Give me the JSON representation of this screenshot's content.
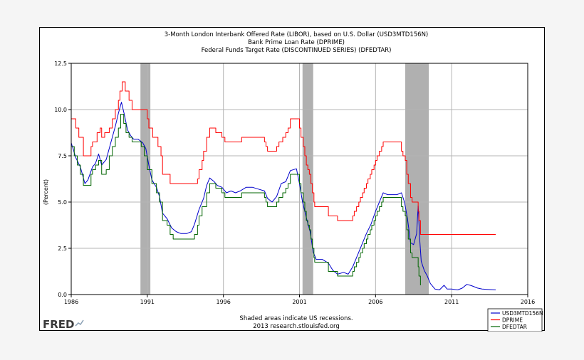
{
  "chart_data": {
    "type": "line",
    "title_lines": [
      "3-Month London Interbank Offered Rate (LIBOR), based on U.S. Dollar (USD3MTD156N)",
      "Bank Prime Loan Rate (DPRIME)",
      "Federal Funds Target Rate  (DISCONTINUED SERIES) (DFEDTAR)"
    ],
    "xlabel": "",
    "ylabel": "(Percent)",
    "xlim": [
      1986,
      2016
    ],
    "ylim": [
      0,
      12.5
    ],
    "x_ticks": [
      "1986",
      "1991",
      "1996",
      "2001",
      "2006",
      "2011",
      "2016"
    ],
    "y_ticks": [
      "0.0",
      "2.5",
      "5.0",
      "7.5",
      "10.0",
      "12.5"
    ],
    "grid": true,
    "recessions": [
      [
        1990.55,
        1991.2
      ],
      [
        2001.2,
        2001.9
      ],
      [
        2007.95,
        2009.5
      ]
    ],
    "series": [
      {
        "name": "USD3MTD156N",
        "color": "#0000cc",
        "points": [
          [
            1986.0,
            8.2
          ],
          [
            1986.3,
            7.4
          ],
          [
            1986.6,
            6.9
          ],
          [
            1986.9,
            6.0
          ],
          [
            1987.1,
            6.2
          ],
          [
            1987.4,
            6.9
          ],
          [
            1987.6,
            7.1
          ],
          [
            1987.8,
            7.6
          ],
          [
            1988.0,
            7.0
          ],
          [
            1988.3,
            7.3
          ],
          [
            1988.6,
            8.2
          ],
          [
            1988.9,
            9.1
          ],
          [
            1989.1,
            9.8
          ],
          [
            1989.3,
            10.4
          ],
          [
            1989.5,
            9.7
          ],
          [
            1989.7,
            8.9
          ],
          [
            1989.9,
            8.6
          ],
          [
            1990.1,
            8.4
          ],
          [
            1990.4,
            8.4
          ],
          [
            1990.7,
            8.2
          ],
          [
            1990.9,
            7.9
          ],
          [
            1991.1,
            7.0
          ],
          [
            1991.3,
            6.2
          ],
          [
            1991.6,
            5.8
          ],
          [
            1991.8,
            5.3
          ],
          [
            1992.0,
            4.4
          ],
          [
            1992.3,
            4.1
          ],
          [
            1992.6,
            3.6
          ],
          [
            1992.9,
            3.4
          ],
          [
            1993.2,
            3.3
          ],
          [
            1993.6,
            3.3
          ],
          [
            1993.9,
            3.4
          ],
          [
            1994.1,
            3.8
          ],
          [
            1994.4,
            4.6
          ],
          [
            1994.7,
            5.2
          ],
          [
            1994.9,
            5.9
          ],
          [
            1995.1,
            6.3
          ],
          [
            1995.4,
            6.1
          ],
          [
            1995.6,
            5.9
          ],
          [
            1995.9,
            5.8
          ],
          [
            1996.2,
            5.5
          ],
          [
            1996.5,
            5.6
          ],
          [
            1996.8,
            5.5
          ],
          [
            1997.1,
            5.6
          ],
          [
            1997.5,
            5.8
          ],
          [
            1997.9,
            5.8
          ],
          [
            1998.3,
            5.7
          ],
          [
            1998.7,
            5.6
          ],
          [
            1998.9,
            5.2
          ],
          [
            1999.2,
            5.0
          ],
          [
            1999.5,
            5.3
          ],
          [
            1999.8,
            6.0
          ],
          [
            2000.1,
            6.1
          ],
          [
            2000.4,
            6.7
          ],
          [
            2000.8,
            6.8
          ],
          [
            2001.0,
            6.0
          ],
          [
            2001.2,
            5.0
          ],
          [
            2001.5,
            4.0
          ],
          [
            2001.7,
            3.4
          ],
          [
            2001.9,
            2.3
          ],
          [
            2002.1,
            1.9
          ],
          [
            2002.5,
            1.9
          ],
          [
            2002.9,
            1.7
          ],
          [
            2003.2,
            1.3
          ],
          [
            2003.5,
            1.1
          ],
          [
            2003.9,
            1.2
          ],
          [
            2004.2,
            1.1
          ],
          [
            2004.5,
            1.5
          ],
          [
            2004.8,
            2.1
          ],
          [
            2005.1,
            2.7
          ],
          [
            2005.4,
            3.3
          ],
          [
            2005.7,
            3.8
          ],
          [
            2006.0,
            4.5
          ],
          [
            2006.3,
            5.1
          ],
          [
            2006.5,
            5.5
          ],
          [
            2006.8,
            5.4
          ],
          [
            2007.1,
            5.4
          ],
          [
            2007.4,
            5.4
          ],
          [
            2007.7,
            5.5
          ],
          [
            2007.9,
            5.0
          ],
          [
            2008.1,
            4.1
          ],
          [
            2008.3,
            2.8
          ],
          [
            2008.5,
            2.7
          ],
          [
            2008.7,
            3.3
          ],
          [
            2008.8,
            4.8
          ],
          [
            2008.9,
            3.0
          ],
          [
            2009.0,
            1.8
          ],
          [
            2009.2,
            1.3
          ],
          [
            2009.4,
            1.0
          ],
          [
            2009.6,
            0.6
          ],
          [
            2009.9,
            0.3
          ],
          [
            2010.2,
            0.25
          ],
          [
            2010.5,
            0.5
          ],
          [
            2010.7,
            0.3
          ],
          [
            2011.0,
            0.3
          ],
          [
            2011.4,
            0.25
          ],
          [
            2011.7,
            0.35
          ],
          [
            2012.0,
            0.55
          ],
          [
            2012.3,
            0.48
          ],
          [
            2012.7,
            0.35
          ],
          [
            2013.0,
            0.3
          ],
          [
            2013.5,
            0.27
          ],
          [
            2013.9,
            0.25
          ]
        ]
      },
      {
        "name": "DPRIME",
        "color": "#ff0000",
        "step": true,
        "points": [
          [
            1986.0,
            9.5
          ],
          [
            1986.3,
            9.0
          ],
          [
            1986.5,
            8.5
          ],
          [
            1986.8,
            7.5
          ],
          [
            1987.3,
            8.0
          ],
          [
            1987.4,
            8.25
          ],
          [
            1987.7,
            8.75
          ],
          [
            1987.9,
            9.0
          ],
          [
            1988.0,
            8.5
          ],
          [
            1988.2,
            8.75
          ],
          [
            1988.5,
            9.0
          ],
          [
            1988.7,
            9.5
          ],
          [
            1988.9,
            10.0
          ],
          [
            1989.1,
            10.5
          ],
          [
            1989.2,
            11.0
          ],
          [
            1989.35,
            11.5
          ],
          [
            1989.55,
            11.0
          ],
          [
            1989.8,
            10.5
          ],
          [
            1990.0,
            10.0
          ],
          [
            1991.0,
            9.5
          ],
          [
            1991.1,
            9.0
          ],
          [
            1991.35,
            8.5
          ],
          [
            1991.7,
            8.0
          ],
          [
            1991.9,
            7.5
          ],
          [
            1992.0,
            6.5
          ],
          [
            1992.5,
            6.0
          ],
          [
            1994.3,
            6.25
          ],
          [
            1994.4,
            6.75
          ],
          [
            1994.6,
            7.25
          ],
          [
            1994.7,
            7.75
          ],
          [
            1994.9,
            8.5
          ],
          [
            1995.1,
            9.0
          ],
          [
            1995.5,
            8.75
          ],
          [
            1995.9,
            8.5
          ],
          [
            1996.1,
            8.25
          ],
          [
            1997.2,
            8.5
          ],
          [
            1998.7,
            8.25
          ],
          [
            1998.8,
            8.0
          ],
          [
            1998.9,
            7.75
          ],
          [
            1999.5,
            8.0
          ],
          [
            1999.65,
            8.25
          ],
          [
            1999.9,
            8.5
          ],
          [
            2000.1,
            8.75
          ],
          [
            2000.25,
            9.0
          ],
          [
            2000.4,
            9.5
          ],
          [
            2001.0,
            9.0
          ],
          [
            2001.1,
            8.5
          ],
          [
            2001.25,
            8.0
          ],
          [
            2001.35,
            7.5
          ],
          [
            2001.45,
            7.0
          ],
          [
            2001.55,
            6.75
          ],
          [
            2001.65,
            6.5
          ],
          [
            2001.75,
            6.0
          ],
          [
            2001.85,
            5.5
          ],
          [
            2001.95,
            5.0
          ],
          [
            2002.0,
            4.75
          ],
          [
            2002.9,
            4.25
          ],
          [
            2003.5,
            4.0
          ],
          [
            2004.5,
            4.25
          ],
          [
            2004.6,
            4.5
          ],
          [
            2004.75,
            4.75
          ],
          [
            2004.9,
            5.0
          ],
          [
            2005.0,
            5.25
          ],
          [
            2005.15,
            5.5
          ],
          [
            2005.25,
            5.75
          ],
          [
            2005.4,
            6.0
          ],
          [
            2005.5,
            6.25
          ],
          [
            2005.65,
            6.5
          ],
          [
            2005.75,
            6.75
          ],
          [
            2005.9,
            7.0
          ],
          [
            2006.0,
            7.25
          ],
          [
            2006.1,
            7.5
          ],
          [
            2006.25,
            7.75
          ],
          [
            2006.4,
            8.0
          ],
          [
            2006.5,
            8.25
          ],
          [
            2007.7,
            7.75
          ],
          [
            2007.8,
            7.5
          ],
          [
            2007.95,
            7.25
          ],
          [
            2008.05,
            6.5
          ],
          [
            2008.15,
            6.0
          ],
          [
            2008.3,
            5.25
          ],
          [
            2008.4,
            5.0
          ],
          [
            2008.8,
            4.5
          ],
          [
            2008.85,
            4.0
          ],
          [
            2008.95,
            3.25
          ],
          [
            2013.9,
            3.25
          ]
        ]
      },
      {
        "name": "DFEDTAR",
        "color": "#006400",
        "step": true,
        "points": [
          [
            1986.0,
            8.0
          ],
          [
            1986.2,
            7.5
          ],
          [
            1986.4,
            7.0
          ],
          [
            1986.6,
            6.5
          ],
          [
            1986.8,
            5.9
          ],
          [
            1987.3,
            6.5
          ],
          [
            1987.4,
            6.75
          ],
          [
            1987.6,
            7.0
          ],
          [
            1987.8,
            7.25
          ],
          [
            1988.0,
            6.5
          ],
          [
            1988.3,
            6.75
          ],
          [
            1988.5,
            7.5
          ],
          [
            1988.7,
            8.0
          ],
          [
            1988.9,
            8.5
          ],
          [
            1989.1,
            9.0
          ],
          [
            1989.25,
            9.75
          ],
          [
            1989.45,
            9.25
          ],
          [
            1989.6,
            8.75
          ],
          [
            1989.8,
            8.5
          ],
          [
            1990.0,
            8.25
          ],
          [
            1990.6,
            8.0
          ],
          [
            1990.8,
            7.5
          ],
          [
            1991.0,
            6.75
          ],
          [
            1991.3,
            6.0
          ],
          [
            1991.6,
            5.5
          ],
          [
            1991.8,
            5.0
          ],
          [
            1992.0,
            4.0
          ],
          [
            1992.3,
            3.75
          ],
          [
            1992.5,
            3.25
          ],
          [
            1992.7,
            3.0
          ],
          [
            1994.1,
            3.25
          ],
          [
            1994.3,
            3.75
          ],
          [
            1994.4,
            4.25
          ],
          [
            1994.6,
            4.75
          ],
          [
            1994.9,
            5.5
          ],
          [
            1995.1,
            6.0
          ],
          [
            1995.5,
            5.75
          ],
          [
            1995.9,
            5.5
          ],
          [
            1996.1,
            5.25
          ],
          [
            1997.2,
            5.5
          ],
          [
            1998.7,
            5.25
          ],
          [
            1998.8,
            5.0
          ],
          [
            1998.9,
            4.75
          ],
          [
            1999.5,
            5.0
          ],
          [
            1999.65,
            5.25
          ],
          [
            1999.9,
            5.5
          ],
          [
            2000.1,
            5.75
          ],
          [
            2000.25,
            6.0
          ],
          [
            2000.4,
            6.5
          ],
          [
            2001.0,
            6.0
          ],
          [
            2001.1,
            5.5
          ],
          [
            2001.25,
            5.0
          ],
          [
            2001.35,
            4.5
          ],
          [
            2001.45,
            4.0
          ],
          [
            2001.55,
            3.75
          ],
          [
            2001.65,
            3.5
          ],
          [
            2001.75,
            3.0
          ],
          [
            2001.85,
            2.5
          ],
          [
            2001.95,
            2.0
          ],
          [
            2002.0,
            1.75
          ],
          [
            2002.9,
            1.25
          ],
          [
            2003.5,
            1.0
          ],
          [
            2004.5,
            1.25
          ],
          [
            2004.6,
            1.5
          ],
          [
            2004.75,
            1.75
          ],
          [
            2004.9,
            2.0
          ],
          [
            2005.0,
            2.25
          ],
          [
            2005.15,
            2.5
          ],
          [
            2005.25,
            2.75
          ],
          [
            2005.4,
            3.0
          ],
          [
            2005.5,
            3.25
          ],
          [
            2005.65,
            3.5
          ],
          [
            2005.75,
            3.75
          ],
          [
            2005.9,
            4.0
          ],
          [
            2006.0,
            4.25
          ],
          [
            2006.1,
            4.5
          ],
          [
            2006.25,
            4.75
          ],
          [
            2006.4,
            5.0
          ],
          [
            2006.5,
            5.25
          ],
          [
            2007.7,
            4.75
          ],
          [
            2007.8,
            4.5
          ],
          [
            2007.95,
            4.25
          ],
          [
            2008.05,
            3.5
          ],
          [
            2008.15,
            3.0
          ],
          [
            2008.3,
            2.25
          ],
          [
            2008.4,
            2.0
          ],
          [
            2008.8,
            1.5
          ],
          [
            2008.85,
            1.0
          ],
          [
            2008.95,
            0.5
          ]
        ]
      }
    ]
  },
  "footer": {
    "note_line1": "Shaded areas indicate US recessions.",
    "note_line2": "2013 research.stlouisfed.org",
    "logo_text": "FRED"
  },
  "colors": {
    "recession": "#b0b0b0",
    "grid": "#b5b5b5"
  }
}
